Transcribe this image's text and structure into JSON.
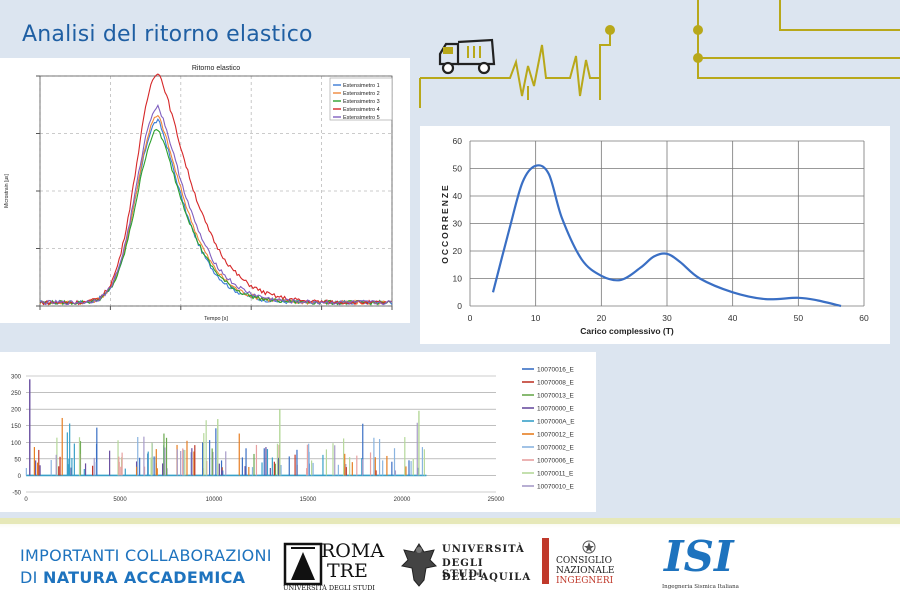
{
  "page": {
    "title": "Analisi del ritorno elastico",
    "accent": "#1f5fa3",
    "circuit_color": "#b8a81a"
  },
  "chart_data": [
    {
      "type": "line",
      "title": "Ritorno elastico",
      "xlabel": "Tempo [s]",
      "ylabel": "Microstrain [με]",
      "xlim": [
        0,
        100
      ],
      "ylim": [
        0,
        100
      ],
      "grid": true,
      "legend": "top-right",
      "series": [
        {
          "name": "Estensimetro 1",
          "color": "#3a7bd5",
          "peak": 79,
          "decay": 10.5
        },
        {
          "name": "Estensimetro 2",
          "color": "#f0883a",
          "peak": 81,
          "decay": 11
        },
        {
          "name": "Estensimetro 3",
          "color": "#2ca02c",
          "peak": 75,
          "decay": 11
        },
        {
          "name": "Estensimetro 4",
          "color": "#d62728",
          "peak": 100,
          "decay": 13
        },
        {
          "name": "Estensimetro 5",
          "color": "#8060c0",
          "peak": 85,
          "decay": 11.5
        }
      ]
    },
    {
      "type": "line",
      "title": "",
      "xlabel": "Carico complessivo (T)",
      "ylabel": "OCCORRENZE",
      "xlim": [
        0,
        60
      ],
      "ylim": [
        0,
        60
      ],
      "xticks": [
        "0",
        "10",
        "20",
        "30",
        "40",
        "50",
        "60"
      ],
      "yticks": [
        "0",
        "10",
        "20",
        "30",
        "40",
        "50",
        "60"
      ],
      "grid": true,
      "series": [
        {
          "name": "",
          "color": "#3a6fc4",
          "x": [
            3.5,
            6,
            8,
            10,
            12,
            14,
            17,
            20,
            23,
            26,
            28,
            30,
            32,
            35,
            40,
            45,
            50,
            53,
            56.5
          ],
          "y": [
            5,
            28,
            45,
            51,
            48,
            32,
            17,
            11,
            9.5,
            14,
            18,
            19,
            16,
            10,
            5,
            2.5,
            3,
            2,
            0
          ]
        }
      ]
    },
    {
      "type": "bar",
      "title": "",
      "xlim": [
        0,
        25000
      ],
      "ylim": [
        -50,
        300
      ],
      "xticks": [
        "0",
        "5000",
        "10000",
        "15000",
        "20000",
        "25000"
      ],
      "yticks": [
        "-50",
        "0",
        "50",
        "100",
        "150",
        "200",
        "250",
        "300"
      ],
      "grid": true,
      "legend": "right",
      "series": [
        {
          "name": "10070016_E",
          "color": "#3a6fc4"
        },
        {
          "name": "10070008_E",
          "color": "#c0392b"
        },
        {
          "name": "10070013_E",
          "color": "#6aa84f"
        },
        {
          "name": "10070000_E",
          "color": "#6a4fa0"
        },
        {
          "name": "1007000A_E",
          "color": "#39a0c8"
        },
        {
          "name": "10070012_E",
          "color": "#e67e22"
        },
        {
          "name": "10070002_E",
          "color": "#8ab4e0"
        },
        {
          "name": "10070006_E",
          "color": "#e8a0a0"
        },
        {
          "name": "10070011_E",
          "color": "#b5d89a"
        },
        {
          "name": "10070010_E",
          "color": "#a79bc8"
        }
      ]
    }
  ],
  "footer": {
    "line1": "IMPORTANTI COLLABORAZIONI",
    "line2_prefix": "DI ",
    "line2_bold": "NATURA ACCADEMICA",
    "logos": {
      "roma_tre": {
        "l1": "ROMA",
        "l2": "TRE",
        "l3": "UNIVERSITÀ DEGLI STUDI"
      },
      "aquila": {
        "l1": "UNIVERSITÀ",
        "l2": "DEGLI STUDI",
        "l3": "DELL'AQUILA"
      },
      "cni": {
        "l1": "CONSIGLIO",
        "l2": "NAZIONALE",
        "l3": "INGEGNERI"
      },
      "isi": {
        "l1": "ISI",
        "l2": "Ingegneria Sismica Italiana"
      }
    }
  }
}
